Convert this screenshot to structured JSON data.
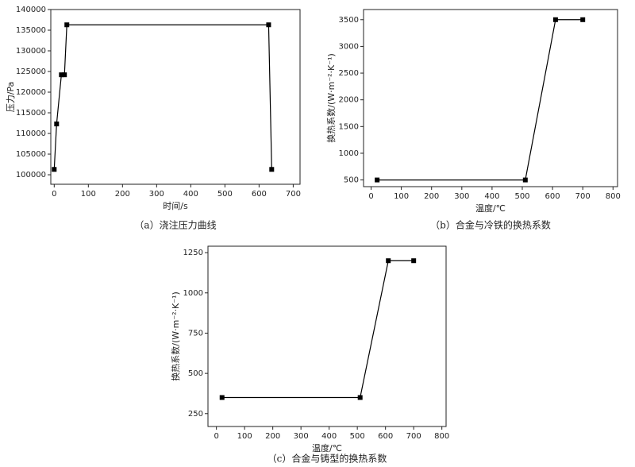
{
  "chart_data": [
    {
      "type": "line",
      "caption": "（a）浇注压力曲线",
      "xlabel": "时间/s",
      "ylabel": "压力/Pa",
      "color": "#000000",
      "x": [
        0,
        7,
        21,
        30,
        37,
        628,
        637
      ],
      "values": [
        101300,
        112300,
        124200,
        124200,
        136300,
        136300,
        101300
      ],
      "xlim": [
        -10,
        720
      ],
      "ylim": [
        97700,
        140000
      ],
      "xticks": [
        0,
        100,
        200,
        300,
        400,
        500,
        600,
        700
      ],
      "yticks": [
        100000,
        105000,
        110000,
        115000,
        120000,
        125000,
        130000,
        135000,
        140000
      ]
    },
    {
      "type": "line",
      "caption": "（b）合金与冷铁的换热系数",
      "xlabel": "温度/℃",
      "ylabel": "换热系数/(W·m⁻²·K⁻¹)",
      "color": "#000000",
      "x": [
        20,
        510,
        610,
        700
      ],
      "values": [
        500,
        500,
        3500,
        3500
      ],
      "xlim": [
        -25,
        815
      ],
      "ylim": [
        375,
        3690
      ],
      "xticks": [
        0,
        100,
        200,
        300,
        400,
        500,
        600,
        700,
        800
      ],
      "yticks": [
        500,
        1000,
        1500,
        2000,
        2500,
        3000,
        3500
      ]
    },
    {
      "type": "line",
      "caption": "（c）合金与铸型的换热系数",
      "xlabel": "温度/℃",
      "ylabel": "换热系数/(W·m⁻²·K⁻¹)",
      "color": "#000000",
      "x": [
        20,
        510,
        610,
        700
      ],
      "values": [
        350,
        350,
        1200,
        1200
      ],
      "xlim": [
        -30,
        815
      ],
      "ylim": [
        170,
        1290
      ],
      "xticks": [
        0,
        100,
        200,
        300,
        400,
        500,
        600,
        700,
        800
      ],
      "yticks": [
        250,
        500,
        750,
        1000,
        1250
      ]
    }
  ]
}
